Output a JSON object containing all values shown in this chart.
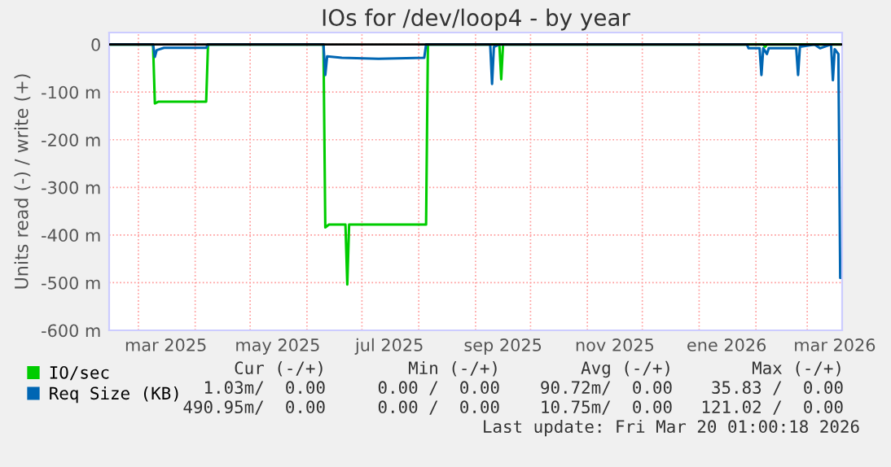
{
  "chart_data": {
    "type": "line",
    "title": "IOs for /dev/loop4 - by year",
    "ylabel": "Units read (-) / write (+)",
    "xlim": [
      "2025-02-13T01:00",
      "2026-03-20T01:00"
    ],
    "xticks": [
      {
        "value": "2025-03-01",
        "label": null
      },
      {
        "value": "2025-03-16",
        "label": "mar 2025"
      },
      {
        "value": "2025-04-01",
        "label": null
      },
      {
        "value": "2025-05-01",
        "label": null
      },
      {
        "value": "2025-05-16",
        "label": "may 2025"
      },
      {
        "value": "2025-06-01",
        "label": null
      },
      {
        "value": "2025-07-01",
        "label": null
      },
      {
        "value": "2025-07-16",
        "label": "jul 2025"
      },
      {
        "value": "2025-08-01",
        "label": null
      },
      {
        "value": "2025-09-01",
        "label": null
      },
      {
        "value": "2025-09-16",
        "label": "sep 2025"
      },
      {
        "value": "2025-10-01",
        "label": null
      },
      {
        "value": "2025-11-01",
        "label": null
      },
      {
        "value": "2025-11-16",
        "label": "nov 2025"
      },
      {
        "value": "2025-12-01",
        "label": null
      },
      {
        "value": "2026-01-01",
        "label": null
      },
      {
        "value": "2026-01-16",
        "label": "ene 2026"
      },
      {
        "value": "2026-02-01",
        "label": null
      },
      {
        "value": "2026-03-01",
        "label": null
      },
      {
        "value": "2026-03-16",
        "label": "mar 2026"
      }
    ],
    "ylim": [
      -600,
      25
    ],
    "yticks": [
      0,
      {
        "value": -100,
        "label": "-100 m"
      },
      {
        "value": -200,
        "label": "-200 m"
      },
      {
        "value": -300,
        "label": "-300 m"
      },
      {
        "value": -400,
        "label": "-400 m"
      },
      {
        "value": -500,
        "label": "-500 m"
      },
      {
        "value": -600,
        "label": "-600 m"
      }
    ],
    "grid": true,
    "legend": "bottom left",
    "marker": "none",
    "line_style": "solid",
    "ref_lines": [
      {
        "axis": "y",
        "value": 0,
        "color": "#000000"
      }
    ],
    "series": [
      {
        "name": "IO/sec",
        "color": "#00cc00",
        "x": [
          "2025-02-13T01:00",
          "2025-03-09",
          "2025-03-10",
          "2025-03-12",
          "2025-04-07",
          "2025-04-08",
          "2025-06-10",
          "2025-06-11",
          "2025-06-13",
          "2025-06-22",
          "2025-06-23",
          "2025-06-24",
          "2025-08-05",
          "2025-08-06",
          "2025-09-14",
          "2025-09-15",
          "2025-09-16",
          "2026-02-05",
          "2026-02-06",
          "2026-02-07",
          "2026-03-20T01:00"
        ],
        "values": [
          0,
          0,
          -124,
          -120,
          -120,
          0,
          0,
          -384,
          -378,
          -378,
          -504,
          -378,
          -378,
          0,
          0,
          -73,
          0,
          0,
          -5,
          0,
          0
        ]
      },
      {
        "name": "Req Size (KB)",
        "color": "#0066b3",
        "x": [
          "2025-02-13T01:00",
          "2025-03-09",
          "2025-03-10",
          "2025-03-11",
          "2025-03-15",
          "2025-04-07",
          "2025-04-08",
          "2025-06-10",
          "2025-06-11",
          "2025-06-12",
          "2025-06-20",
          "2025-07-10",
          "2025-08-04",
          "2025-08-05",
          "2025-09-09",
          "2025-09-10",
          "2025-09-11",
          "2025-09-14",
          "2026-01-27",
          "2026-01-28",
          "2026-02-03",
          "2026-02-04",
          "2026-02-05",
          "2026-02-07",
          "2026-02-08",
          "2026-02-23",
          "2026-02-24",
          "2026-02-25",
          "2026-03-05",
          "2026-03-08",
          "2026-03-14",
          "2026-03-15",
          "2026-03-16",
          "2026-03-18",
          "2026-03-19",
          "2026-03-20T01:00"
        ],
        "values": [
          0,
          0,
          -26,
          -12,
          -7,
          -7,
          0,
          0,
          -64,
          -25,
          -28,
          -30,
          -28,
          0,
          0,
          -83,
          -5,
          0,
          0,
          -8,
          -8,
          -64,
          -8,
          -20,
          -8,
          -8,
          -64,
          -5,
          0,
          -8,
          0,
          -75,
          -10,
          -20,
          -490,
          -490
        ]
      }
    ],
    "annotations": [
      "Cur (-/+)",
      "Min (-/+)",
      "Avg (-/+)",
      "Max (-/+)",
      "1.03m/  0.00",
      "0.00 /  0.00",
      "90.72m/  0.00",
      "35.83 /  0.00",
      "490.95m/  0.00",
      "0.00 /  0.00",
      "10.75m/  0.00",
      "121.02 /  0.00",
      "Last update: Fri Mar 20 01:00:18 2026"
    ]
  }
}
